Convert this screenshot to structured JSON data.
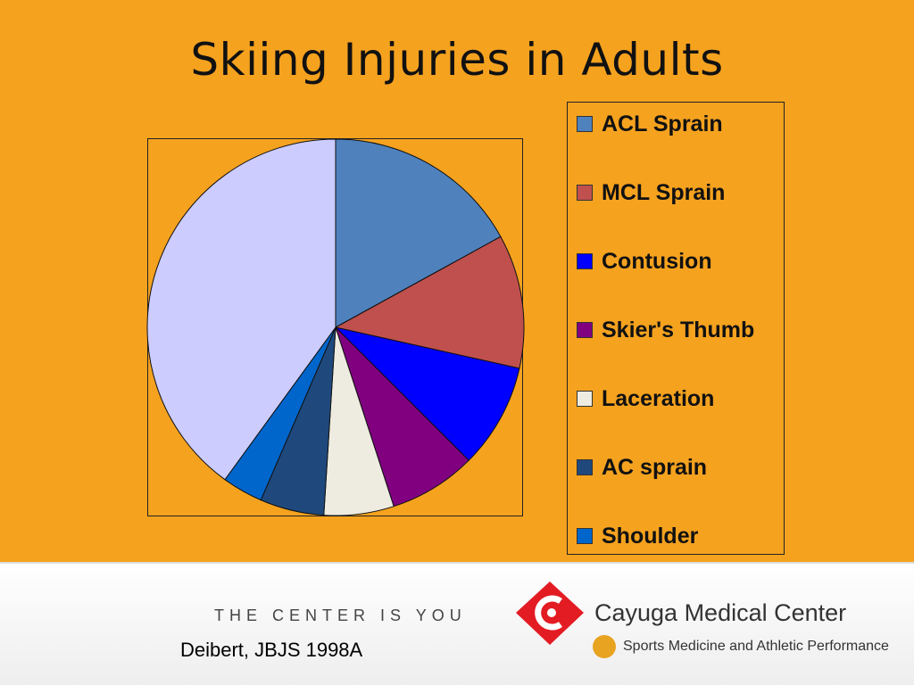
{
  "slide": {
    "title": "Skiing Injuries in Adults",
    "citation": "Deibert, JBJS 1998A",
    "tagline": "THE CENTER IS YOU"
  },
  "branding": {
    "org_name": "Cayuga Medical Center",
    "org_subtitle": "Sports Medicine and Athletic Performance",
    "logo_icon": "cayuga-c-diamond-icon",
    "subtitle_icon": "athlete-icon",
    "logo_color": "#E31B23"
  },
  "chart_data": {
    "type": "pie",
    "title": "",
    "legend_position": "right",
    "start_angle_deg": 0,
    "direction": "clockwise",
    "slices": [
      {
        "label": "ACL Sprain",
        "value": 17,
        "color": "#4F81BD"
      },
      {
        "label": "MCL Sprain",
        "value": 11.5,
        "color": "#C0504D"
      },
      {
        "label": "Contusion",
        "value": 9,
        "color": "#0000FF"
      },
      {
        "label": "Skier's Thumb",
        "value": 7.5,
        "color": "#800080"
      },
      {
        "label": "Laceration",
        "value": 6,
        "color": "#EEECE1"
      },
      {
        "label": "AC sprain",
        "value": 5.5,
        "color": "#1F497D"
      },
      {
        "label": "Shoulder",
        "value": 3.5,
        "color": "#0066CC"
      },
      {
        "label": "",
        "value": 40,
        "color": "#CCCCFF"
      }
    ]
  }
}
